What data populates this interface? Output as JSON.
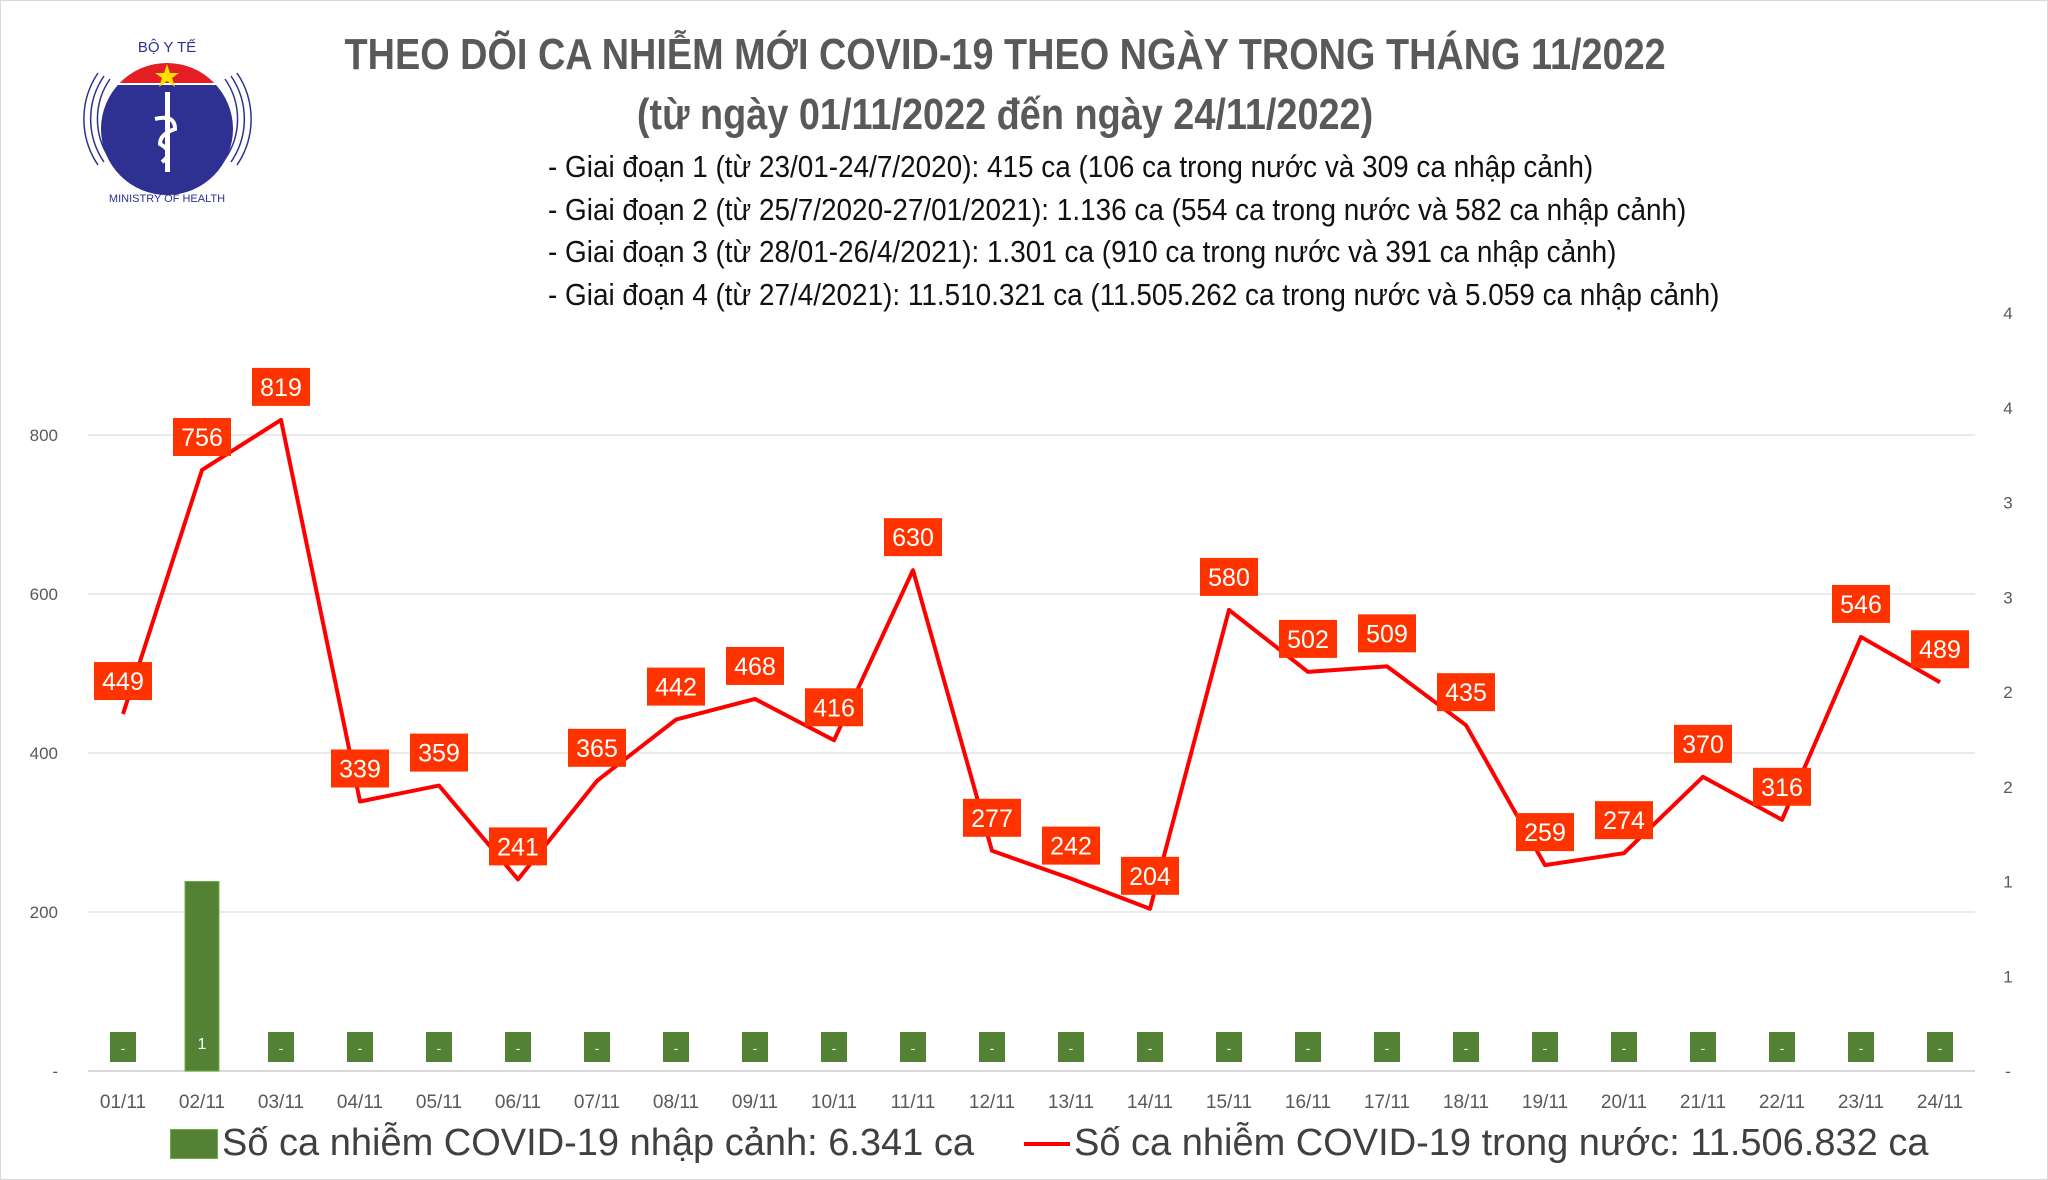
{
  "header": {
    "title": "THEO DÕI CA NHIỄM MỚI COVID-19 THEO NGÀY TRONG THÁNG 11/2022",
    "subtitle": "(từ ngày 01/11/2022 đến ngày 24/11/2022)",
    "stages": [
      "- Giai đoạn 1 (từ 23/01-24/7/2020): 415 ca (106 ca trong nước và 309 ca nhập cảnh)",
      "- Giai đoạn 2 (từ 25/7/2020-27/01/2021): 1.136 ca (554 ca trong nước và 582 ca nhập cảnh)",
      "- Giai đoạn 3 (từ 28/01-26/4/2021): 1.301 ca (910 ca trong nước và 391 ca nhập cảnh)",
      "- Giai đoạn 4 (từ 27/4/2021): 11.510.321 ca (11.505.262 ca trong nước và 5.059 ca nhập cảnh)"
    ],
    "logo_text": {
      "top": "BỘ Y TẾ",
      "bottom": "MINISTRY OF HEALTH"
    }
  },
  "chart_data": {
    "type": "bar+line",
    "categories": [
      "01/11",
      "02/11",
      "03/11",
      "04/11",
      "05/11",
      "06/11",
      "07/11",
      "08/11",
      "09/11",
      "10/11",
      "11/11",
      "12/11",
      "13/11",
      "14/11",
      "15/11",
      "16/11",
      "17/11",
      "18/11",
      "19/11",
      "20/11",
      "21/11",
      "22/11",
      "23/11",
      "24/11"
    ],
    "series": [
      {
        "name": "Số ca nhiễm COVID-19 nhập cảnh: 6.341 ca",
        "type": "bar",
        "axis": "right",
        "color": "#548235",
        "values": [
          0,
          1,
          0,
          0,
          0,
          0,
          0,
          0,
          0,
          0,
          0,
          0,
          0,
          0,
          0,
          0,
          0,
          0,
          0,
          0,
          0,
          0,
          0,
          0
        ],
        "labels": [
          "-",
          "1",
          "-",
          "-",
          "-",
          "-",
          "-",
          "-",
          "-",
          "-",
          "-",
          "-",
          "-",
          "-",
          "-",
          "-",
          "-",
          "-",
          "-",
          "-",
          "-",
          "-",
          "-",
          "-"
        ]
      },
      {
        "name": "Số ca nhiễm COVID-19 trong nước: 11.506.832 ca",
        "type": "line",
        "axis": "left",
        "color": "#ff0000",
        "label_bg": "#ff3300",
        "values": [
          449,
          756,
          819,
          339,
          359,
          241,
          365,
          442,
          468,
          416,
          630,
          277,
          242,
          204,
          580,
          502,
          509,
          435,
          259,
          274,
          370,
          316,
          546,
          489
        ]
      }
    ],
    "left_axis": {
      "ylim": [
        0,
        1000
      ],
      "ticks": [
        0,
        200,
        400,
        600,
        800
      ],
      "tick_labels": [
        "-",
        "200",
        "400",
        "600",
        "800"
      ]
    },
    "right_axis": {
      "ylim": [
        0,
        4
      ],
      "ticks": [
        0,
        0.5,
        1,
        1.5,
        2,
        2.5,
        3,
        3.5,
        4
      ],
      "tick_labels": [
        "-",
        "1",
        "1",
        "2",
        "2",
        "3",
        "3",
        "4",
        "4"
      ]
    },
    "grid": true,
    "legend": "bottom"
  }
}
